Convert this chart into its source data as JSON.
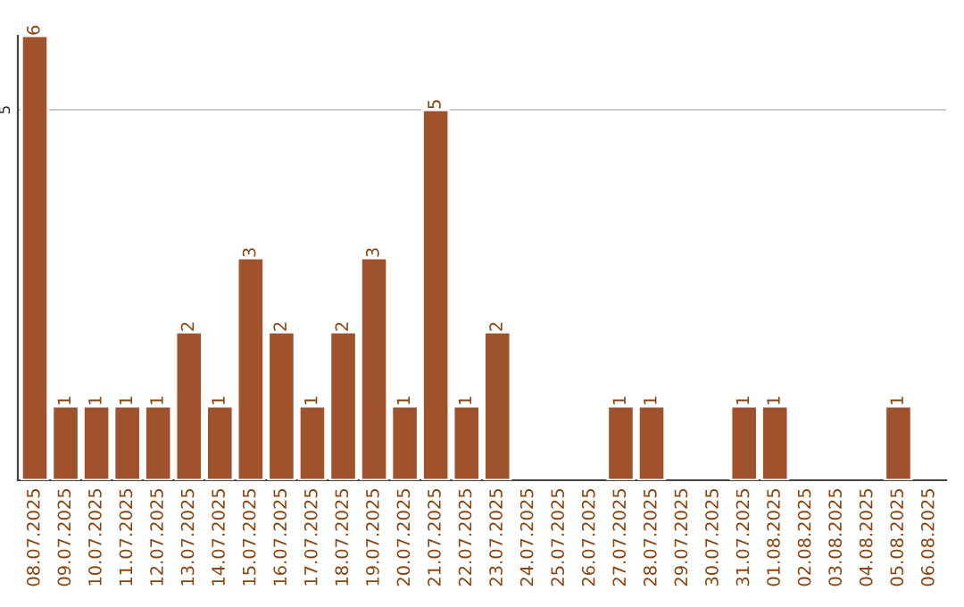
{
  "chart_data": {
    "type": "bar",
    "categories": [
      "08.07.2025",
      "09.07.2025",
      "10.07.2025",
      "11.07.2025",
      "12.07.2025",
      "13.07.2025",
      "14.07.2025",
      "15.07.2025",
      "16.07.2025",
      "17.07.2025",
      "18.07.2025",
      "19.07.2025",
      "20.07.2025",
      "21.07.2025",
      "22.07.2025",
      "23.07.2025",
      "24.07.2025",
      "25.07.2025",
      "26.07.2025",
      "27.07.2025",
      "28.07.2025",
      "29.07.2025",
      "30.07.2025",
      "31.07.2025",
      "01.08.2025",
      "02.08.2025",
      "03.08.2025",
      "04.08.2025",
      "05.08.2025",
      "06.08.2025"
    ],
    "values": [
      6,
      1,
      1,
      1,
      1,
      2,
      1,
      3,
      2,
      1,
      2,
      3,
      1,
      5,
      1,
      2,
      null,
      null,
      null,
      1,
      1,
      null,
      null,
      1,
      1,
      null,
      null,
      null,
      1,
      null
    ],
    "color": "#a0522d",
    "ylim": [
      0,
      6
    ],
    "yticks": [
      5
    ],
    "grid": "y",
    "data_labels": true
  }
}
